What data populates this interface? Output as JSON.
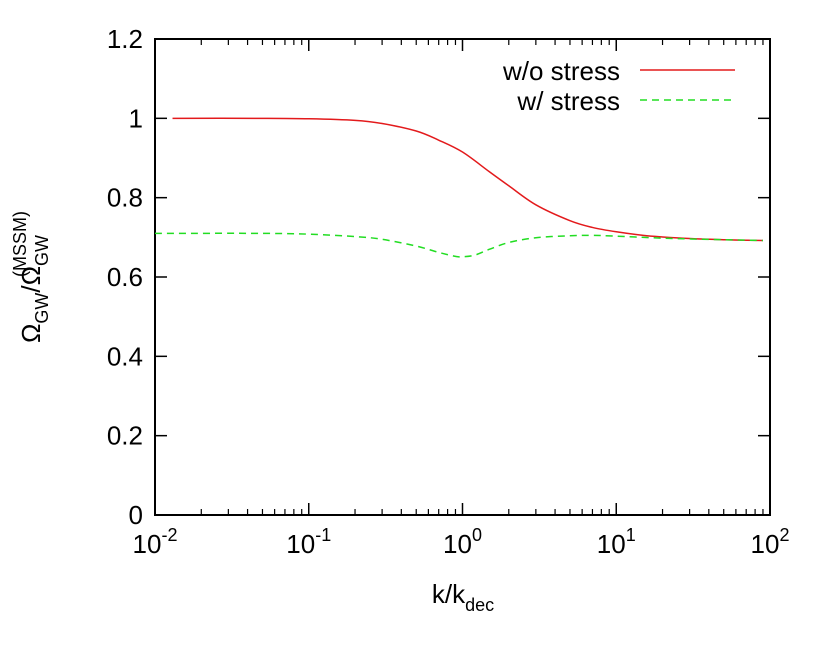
{
  "chart_data": {
    "type": "line",
    "xscale": "log",
    "xlim": [
      0.01,
      100
    ],
    "ylim": [
      0,
      1.2
    ],
    "grid": false,
    "legend_position": "top-right",
    "xlabel": {
      "main": "k/k",
      "sub": "dec"
    },
    "ylabel": {
      "omega": "Ω",
      "sub": "GW",
      "slash": "/",
      "omega2": "Ω",
      "sub2": "GW",
      "sup2": "(MSSM)"
    },
    "x_ticks": [
      {
        "value": 0.01,
        "base": "10",
        "exp": "-2"
      },
      {
        "value": 0.1,
        "base": "10",
        "exp": "-1"
      },
      {
        "value": 1,
        "base": "10",
        "exp": "0"
      },
      {
        "value": 10,
        "base": "10",
        "exp": "1"
      },
      {
        "value": 100,
        "base": "10",
        "exp": "2"
      }
    ],
    "y_ticks": [
      {
        "value": 0,
        "label": "0"
      },
      {
        "value": 0.2,
        "label": "0.2"
      },
      {
        "value": 0.4,
        "label": "0.4"
      },
      {
        "value": 0.6,
        "label": "0.6"
      },
      {
        "value": 0.8,
        "label": "0.8"
      },
      {
        "value": 1.0,
        "label": "1"
      },
      {
        "value": 1.2,
        "label": "1.2"
      }
    ],
    "series": [
      {
        "name": "w/o stress",
        "color": "#e31a1c",
        "dash": "solid",
        "points": [
          [
            0.013,
            1.0
          ],
          [
            0.05,
            1.0
          ],
          [
            0.1,
            0.999
          ],
          [
            0.2,
            0.995
          ],
          [
            0.3,
            0.987
          ],
          [
            0.5,
            0.968
          ],
          [
            0.7,
            0.945
          ],
          [
            1.0,
            0.915
          ],
          [
            1.5,
            0.865
          ],
          [
            2.0,
            0.83
          ],
          [
            3.0,
            0.782
          ],
          [
            5.0,
            0.742
          ],
          [
            7.0,
            0.725
          ],
          [
            10.0,
            0.714
          ],
          [
            15.0,
            0.705
          ],
          [
            20.0,
            0.701
          ],
          [
            30.0,
            0.697
          ],
          [
            50.0,
            0.694
          ],
          [
            90.0,
            0.692
          ]
        ]
      },
      {
        "name": "w/ stress",
        "color": "#22dd22",
        "dash": "dashed",
        "points": [
          [
            0.01,
            0.71
          ],
          [
            0.05,
            0.71
          ],
          [
            0.1,
            0.708
          ],
          [
            0.2,
            0.702
          ],
          [
            0.3,
            0.695
          ],
          [
            0.5,
            0.678
          ],
          [
            0.7,
            0.662
          ],
          [
            0.9,
            0.652
          ],
          [
            1.0,
            0.651
          ],
          [
            1.2,
            0.655
          ],
          [
            1.5,
            0.67
          ],
          [
            2.0,
            0.687
          ],
          [
            3.0,
            0.699
          ],
          [
            5.0,
            0.704
          ],
          [
            7.0,
            0.705
          ],
          [
            10.0,
            0.703
          ],
          [
            20.0,
            0.698
          ],
          [
            50.0,
            0.694
          ],
          [
            90.0,
            0.692
          ]
        ]
      }
    ]
  }
}
